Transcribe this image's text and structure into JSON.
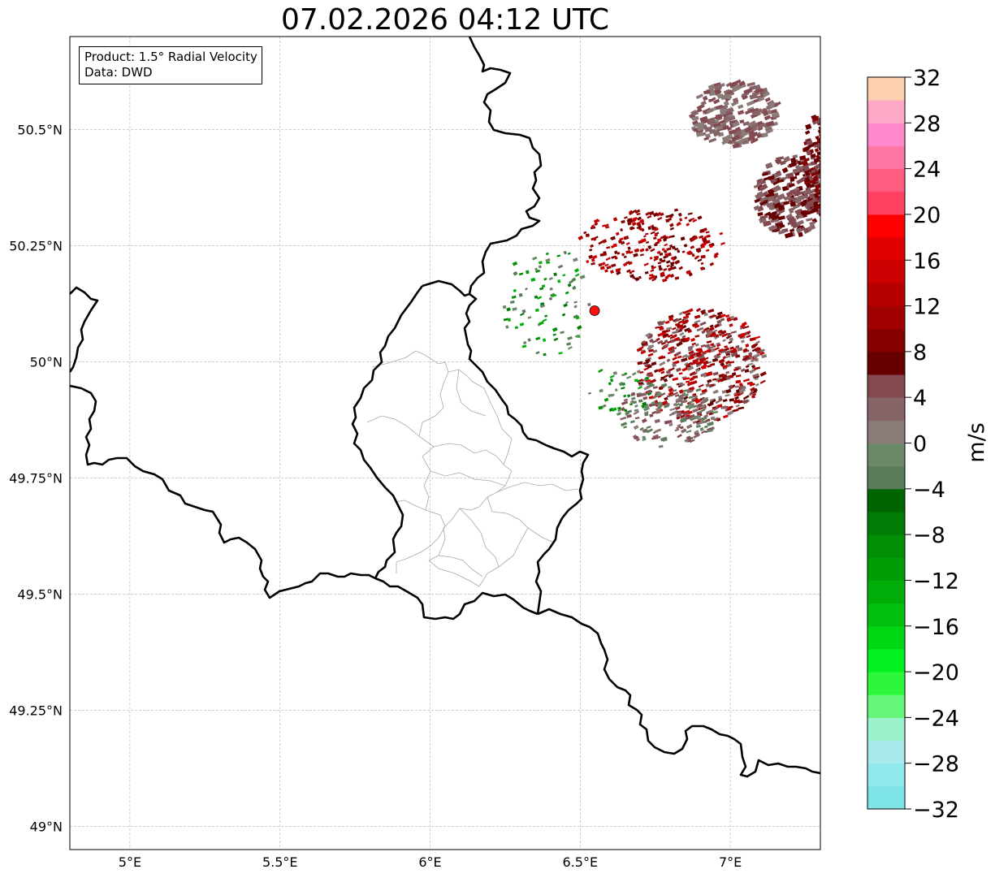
{
  "map": {
    "title": "07.02.2026 04:12 UTC",
    "info": {
      "product": "Product: 1.5° Radial Velocity",
      "source": "Data: DWD"
    },
    "lon_range": [
      4.8,
      7.3
    ],
    "lat_range": [
      48.95,
      50.7
    ],
    "lon_ticks": [
      {
        "value": 5.0,
        "label": "5°E"
      },
      {
        "value": 5.5,
        "label": "5.5°E"
      },
      {
        "value": 6.0,
        "label": "6°E"
      },
      {
        "value": 6.5,
        "label": "6.5°E"
      },
      {
        "value": 7.0,
        "label": "7°E"
      }
    ],
    "lat_ticks": [
      {
        "value": 49.0,
        "label": "49°N"
      },
      {
        "value": 49.25,
        "label": "49.25°N"
      },
      {
        "value": 49.5,
        "label": "49.5°N"
      },
      {
        "value": 49.75,
        "label": "49.75°N"
      },
      {
        "value": 50.0,
        "label": "50°N"
      },
      {
        "value": 50.25,
        "label": "50.25°N"
      },
      {
        "value": 50.5,
        "label": "50.5°N"
      }
    ],
    "gridlines": true,
    "radar_site": {
      "lon": 6.548,
      "lat": 50.11,
      "color": "#ff1010"
    },
    "colorbar": {
      "label": "m/s",
      "min": -32,
      "max": 32,
      "tick_values": [
        -32,
        -28,
        -24,
        -20,
        -16,
        -12,
        -8,
        -4,
        0,
        4,
        8,
        12,
        16,
        20,
        24,
        28,
        32
      ],
      "tick_labels": [
        "−32",
        "−28",
        "−24",
        "−20",
        "−16",
        "−12",
        "−8",
        "−4",
        "0",
        "4",
        "8",
        "12",
        "16",
        "20",
        "24",
        "28",
        "32"
      ],
      "colors": [
        "#7fe4e8",
        "#90e7ec",
        "#a8e9ee",
        "#9cf2cc",
        "#65f67a",
        "#2df73a",
        "#00f11e",
        "#00d714",
        "#00c00d",
        "#00ad09",
        "#009e06",
        "#008f05",
        "#007c04",
        "#006400",
        "#5a7c58",
        "#6b8868",
        "#8a7a78",
        "#876468",
        "#824a50",
        "#660000",
        "#870000",
        "#a00000",
        "#b60000",
        "#cc0000",
        "#df0000",
        "#ff0000",
        "#ff4060",
        "#ff5d80",
        "#ff77a4",
        "#ff88cc",
        "#ffa8c8",
        "#ffd0b0"
      ]
    }
  }
}
